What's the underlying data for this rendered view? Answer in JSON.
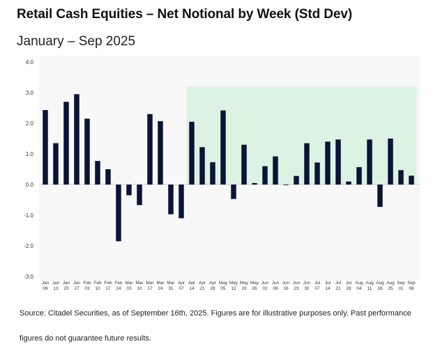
{
  "chart_data": {
    "type": "bar",
    "title": "Retail Cash Equities – Net Notional by Week (Std Dev)",
    "subtitle": "January – Sep 2025",
    "xlabel": "",
    "ylabel": "",
    "ylim": [
      -3.0,
      4.0
    ],
    "yticks": [
      "4.0",
      "3.0",
      "2.0",
      "1.0",
      "0.0",
      "-1.0",
      "-2.0",
      "-3.0"
    ],
    "ytick_values": [
      4,
      3,
      2,
      1,
      0,
      -1,
      -2,
      -3
    ],
    "categories": [
      [
        "Jan",
        "06"
      ],
      [
        "Jan",
        "13"
      ],
      [
        "Jan",
        "20"
      ],
      [
        "Jan",
        "27"
      ],
      [
        "Feb",
        "03"
      ],
      [
        "Feb",
        "10"
      ],
      [
        "Feb",
        "17"
      ],
      [
        "Feb",
        "24"
      ],
      [
        "Mar",
        "03"
      ],
      [
        "Mar",
        "10"
      ],
      [
        "Mar",
        "17"
      ],
      [
        "Mar",
        "24"
      ],
      [
        "Mar",
        "31"
      ],
      [
        "Apr",
        "07"
      ],
      [
        "Apr",
        "14"
      ],
      [
        "Apr",
        "21"
      ],
      [
        "Apr",
        "28"
      ],
      [
        "May",
        "05"
      ],
      [
        "May",
        "12"
      ],
      [
        "May",
        "19"
      ],
      [
        "May",
        "26"
      ],
      [
        "Jun",
        "02"
      ],
      [
        "Jun",
        "09"
      ],
      [
        "Jun",
        "16"
      ],
      [
        "Jun",
        "23"
      ],
      [
        "Jun",
        "30"
      ],
      [
        "Jul",
        "07"
      ],
      [
        "Jul",
        "14"
      ],
      [
        "Jul",
        "21"
      ],
      [
        "Jul",
        "28"
      ],
      [
        "Aug",
        "04"
      ],
      [
        "Aug",
        "11"
      ],
      [
        "Aug",
        "18"
      ],
      [
        "Aug",
        "25"
      ],
      [
        "Sep",
        "01"
      ],
      [
        "Sep",
        "08"
      ]
    ],
    "values": [
      2.43,
      1.35,
      2.7,
      2.95,
      2.15,
      0.77,
      0.5,
      -1.85,
      -0.35,
      -0.67,
      2.3,
      2.07,
      -0.97,
      -1.1,
      2.05,
      1.22,
      0.73,
      2.42,
      -0.47,
      1.3,
      0.05,
      0.6,
      0.92,
      -0.02,
      0.28,
      1.35,
      0.72,
      1.4,
      1.47,
      0.1,
      0.57,
      1.47,
      -0.73,
      1.5,
      0.47,
      0.29
    ],
    "highlight": {
      "from_index": 14,
      "to_index": 35,
      "y_top": 3.2,
      "y_bottom": 0.0,
      "color": "#dcf3e4"
    },
    "bar_color": "#0c1436",
    "plot_background": "#f8f8f8",
    "source": "Source: Citadel Securities, as of September 16th, 2025. Figures are for illustrative purposes only. Past performance figures do not guarantee future results."
  }
}
